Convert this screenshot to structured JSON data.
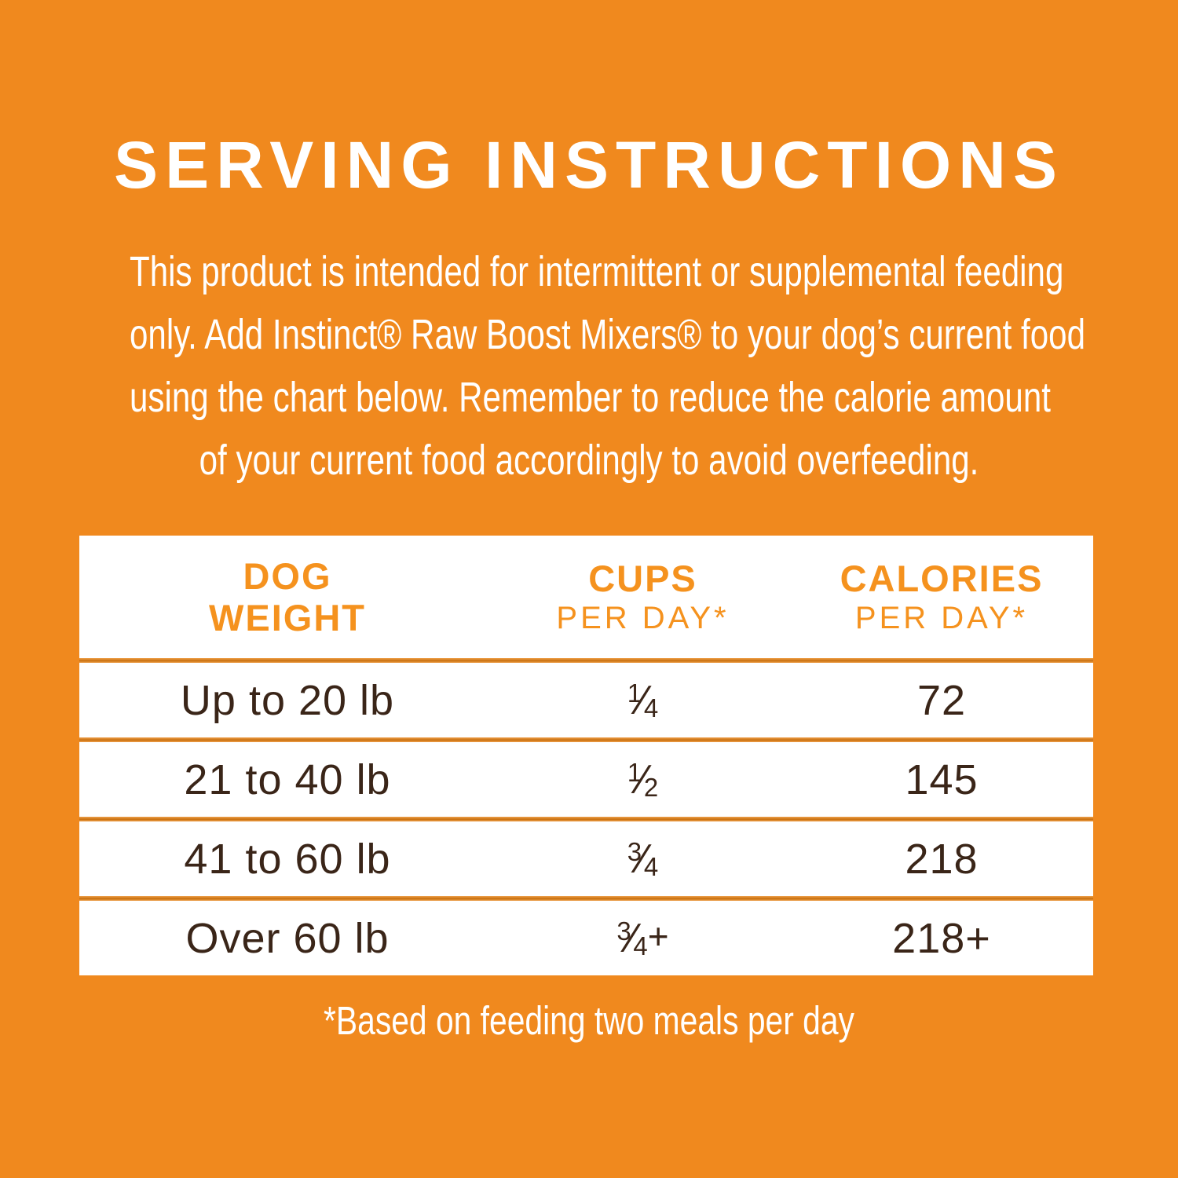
{
  "title": "SERVING INSTRUCTIONS",
  "intro": {
    "lines": [
      "This product is intended for intermittent or supplemental feeding",
      "only. Add Instinct® Raw Boost Mixers® to your dog’s current food",
      "using the chart below. Remember to reduce the calorie amount",
      "of your current food accordingly to avoid overfeeding."
    ]
  },
  "table": {
    "columns": {
      "weight": {
        "line1": "DOG",
        "line2": "WEIGHT"
      },
      "cups": {
        "title": "CUPS",
        "subtitle": "PER DAY*"
      },
      "calories": {
        "title": "CALORIES",
        "subtitle": "PER DAY*"
      }
    },
    "rows": [
      {
        "weight": "Up to 20 lb",
        "cups": {
          "num": "1",
          "slash": "⁄",
          "den": "4",
          "plus": ""
        },
        "calories": "72"
      },
      {
        "weight": "21 to 40 lb",
        "cups": {
          "num": "1",
          "slash": "⁄",
          "den": "2",
          "plus": ""
        },
        "calories": "145"
      },
      {
        "weight": "41 to 60 lb",
        "cups": {
          "num": "3",
          "slash": "⁄",
          "den": "4",
          "plus": ""
        },
        "calories": "218"
      },
      {
        "weight": "Over 60 lb",
        "cups": {
          "num": "3",
          "slash": "⁄",
          "den": "4",
          "plus": "+"
        },
        "calories": "218+"
      }
    ],
    "footnote": "*Based on feeding two meals per day"
  },
  "colors": {
    "background": "#F0891E",
    "title_text": "#FFFFFF",
    "header_text": "#F5921E",
    "row_text": "#3A2518",
    "table_background": "#FFFFFF",
    "separator": "#C9700F"
  }
}
